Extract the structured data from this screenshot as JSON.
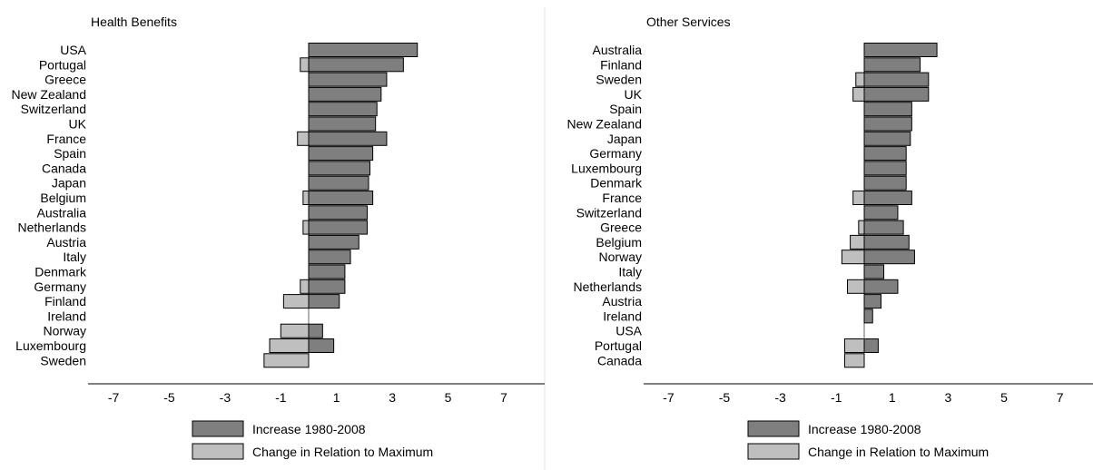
{
  "colors": {
    "increase": "#7f7f7f",
    "relation": "#bfbfbf",
    "stroke": "#000000",
    "panel_border": "#e3e3e3"
  },
  "chart_data": [
    {
      "type": "bar",
      "orientation": "horizontal",
      "title": "Health Benefits",
      "xlim": [
        -7,
        8
      ],
      "xticks": [
        -7,
        -5,
        -3,
        -1,
        1,
        3,
        5,
        7
      ],
      "tick_labels": [
        "-7",
        "-5",
        "-3",
        "-1",
        "1",
        "3",
        "5",
        "7"
      ],
      "categories": [
        "USA",
        "Portugal",
        "Greece",
        "New Zealand",
        "Switzerland",
        "UK",
        "France",
        "Spain",
        "Canada",
        "Japan",
        "Belgium",
        "Australia",
        "Netherlands",
        "Austria",
        "Italy",
        "Denmark",
        "Germany",
        "Finland",
        "Ireland",
        "Norway",
        "Luxembourg",
        "Sweden"
      ],
      "series": [
        {
          "name": "Increase 1980-2008",
          "color": "#7f7f7f",
          "values": [
            3.9,
            3.4,
            2.8,
            2.6,
            2.45,
            2.4,
            2.8,
            2.3,
            2.2,
            2.15,
            2.3,
            2.1,
            2.1,
            1.8,
            1.5,
            1.3,
            1.3,
            1.1,
            0,
            0.5,
            0.9,
            0
          ]
        },
        {
          "name": "Change in Relation to Maximum",
          "color": "#bfbfbf",
          "values": [
            0,
            -0.3,
            0,
            0,
            0,
            0,
            -0.4,
            0,
            0,
            0,
            -0.2,
            0,
            -0.2,
            0,
            0,
            0,
            -0.3,
            -0.9,
            0,
            -1.0,
            -1.4,
            -1.6
          ]
        }
      ],
      "legend_position": "bottom"
    },
    {
      "type": "bar",
      "orientation": "horizontal",
      "title": "Other Services",
      "xlim": [
        -7,
        8
      ],
      "xticks": [
        -7,
        -5,
        -3,
        -1,
        1,
        3,
        5,
        7
      ],
      "tick_labels": [
        "-7",
        "-5",
        "-3",
        "-1",
        "1",
        "3",
        "5",
        "7"
      ],
      "categories": [
        "Australia",
        "Finland",
        "Sweden",
        "UK",
        "Spain",
        "New Zealand",
        "Japan",
        "Germany",
        "Luxembourg",
        "Denmark",
        "France",
        "Switzerland",
        "Greece",
        "Belgium",
        "Norway",
        "Italy",
        "Netherlands",
        "Austria",
        "Ireland",
        "USA",
        "Portugal",
        "Canada"
      ],
      "series": [
        {
          "name": "Increase 1980-2008",
          "color": "#7f7f7f",
          "values": [
            2.6,
            2.0,
            2.3,
            2.3,
            1.7,
            1.7,
            1.65,
            1.5,
            1.5,
            1.5,
            1.7,
            1.2,
            1.4,
            1.6,
            1.8,
            0.7,
            1.2,
            0.6,
            0.3,
            0,
            0.5,
            0
          ]
        },
        {
          "name": "Change in Relation to Maximum",
          "color": "#bfbfbf",
          "values": [
            0,
            0,
            -0.3,
            -0.4,
            0,
            0,
            0,
            0,
            0,
            0,
            -0.4,
            0,
            -0.2,
            -0.5,
            -0.8,
            0,
            -0.6,
            0,
            0,
            0,
            -0.7,
            -0.7
          ]
        }
      ],
      "legend_position": "bottom"
    }
  ]
}
